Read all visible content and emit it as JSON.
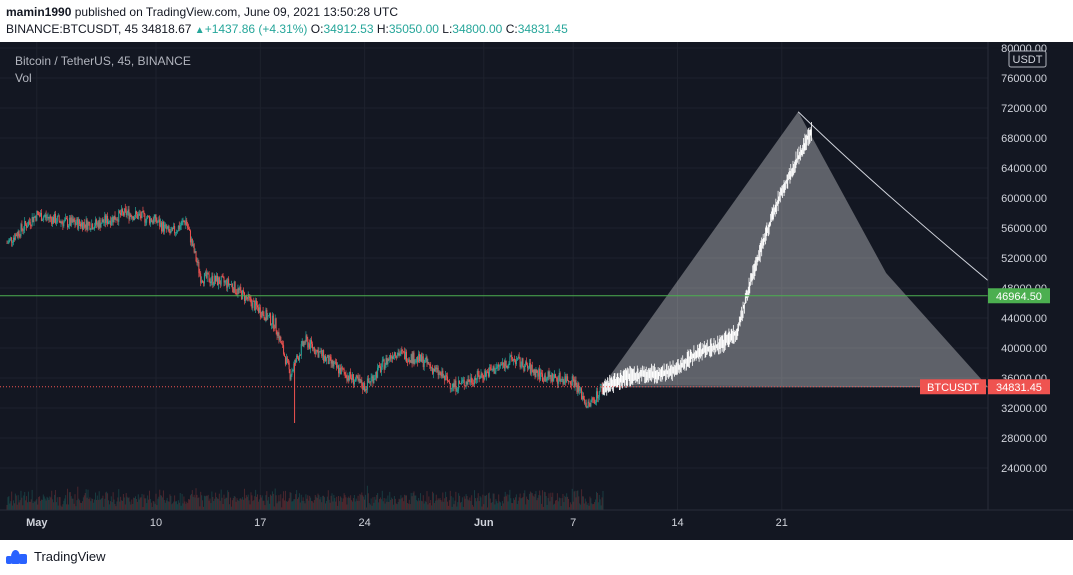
{
  "header": {
    "author": "mamin1990",
    "published": "published on TradingView.com, June 09, 2021 13:50:28 UTC",
    "symbol": "BINANCE:BTCUSDT, 45",
    "last": "34818.67",
    "change": "+1437.86 (+4.31%)",
    "o_label": "O:",
    "o_value": "34912.53",
    "h_label": "H:",
    "h_value": "35050.00",
    "l_label": "L:",
    "l_value": "34800.00",
    "c_label": "C:",
    "c_value": "34831.45"
  },
  "legend": {
    "title": "Bitcoin / TetherUS, 45, BINANCE",
    "vol": "Vol"
  },
  "currency_badge": "USDT",
  "footer": {
    "brand": "TradingView"
  },
  "colors": {
    "background": "#131722",
    "up": "#26a69a",
    "down": "#ef5350",
    "projection": "#d1d4dc",
    "hline": "#4caf50",
    "price_badge": "#ef5350"
  },
  "chart_data": {
    "type": "line",
    "symbol": "BTCUSDT",
    "ylim": [
      20000,
      82000
    ],
    "yticks": [
      "24000.00",
      "28000.00",
      "32000.00",
      "36000.00",
      "40000.00",
      "44000.00",
      "48000.00",
      "52000.00",
      "56000.00",
      "60000.00",
      "64000.00",
      "68000.00",
      "72000.00",
      "76000.00",
      "80000.00"
    ],
    "xtick_labels": [
      "May",
      "10",
      "17",
      "24",
      "Jun",
      "7",
      "14",
      "21"
    ],
    "history": {
      "name": "Bitcoin / TetherUS",
      "x": [
        "Apr 30",
        "May 2",
        "May 4",
        "May 6",
        "May 8",
        "May 10",
        "May 11",
        "May 12",
        "May 13",
        "May 15",
        "May 17",
        "May 18",
        "May 19",
        "May 20",
        "May 22",
        "May 24",
        "May 26",
        "May 28",
        "May 30",
        "Jun 1",
        "Jun 3",
        "Jun 5",
        "Jun 7",
        "Jun 8",
        "Jun 9"
      ],
      "y": [
        54000,
        57800,
        56700,
        56500,
        58000,
        57000,
        55200,
        57000,
        49500,
        48500,
        45000,
        43200,
        36500,
        41000,
        37500,
        34800,
        39500,
        38200,
        34900,
        36500,
        38500,
        36200,
        35800,
        32200,
        34830
      ]
    },
    "projection": {
      "x": [
        "Jun 9",
        "Jun 11",
        "Jun 13",
        "Jun 14",
        "Jun 15",
        "Jun 17",
        "Jun 18",
        "Jun 19",
        "Jun 20",
        "Jun 21",
        "Jun 23"
      ],
      "y": [
        34800,
        36400,
        36600,
        37200,
        39000,
        40500,
        42200,
        49500,
        55500,
        61000,
        69000
      ]
    },
    "hlines": [
      {
        "value": 46964.5,
        "label": "46964.50"
      },
      {
        "value": 34831.45,
        "label": "34831.45",
        "tag": "BTCUSDT"
      }
    ]
  }
}
